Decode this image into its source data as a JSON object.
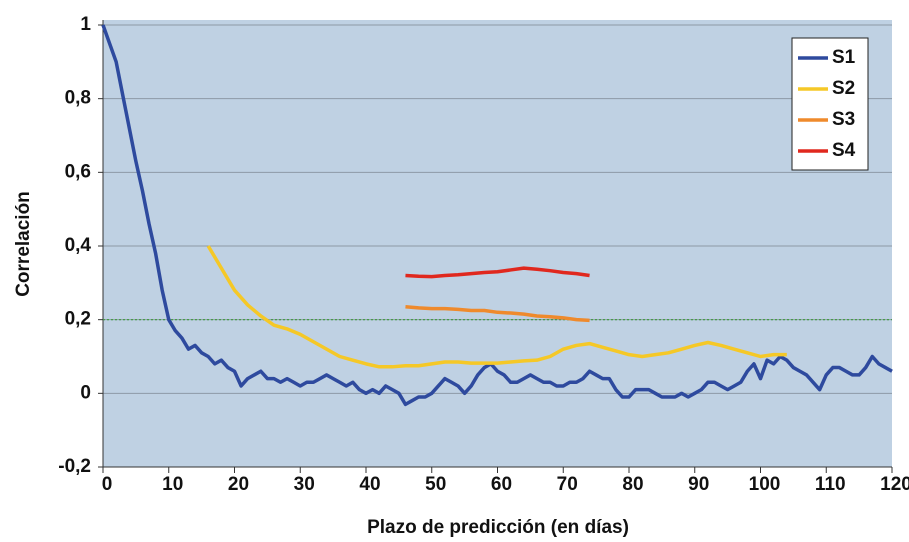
{
  "chart_data": {
    "type": "line",
    "y_label": "Correlación",
    "x_label": "Plazo de predicción (en días)",
    "xlim": [
      0,
      120
    ],
    "xticks": [
      0,
      10,
      20,
      30,
      40,
      50,
      60,
      70,
      80,
      90,
      100,
      110,
      120
    ],
    "ylim": [
      -0.2,
      1
    ],
    "yticks": [
      {
        "value": -0.2,
        "label": "-0,2"
      },
      0,
      {
        "value": 0.2,
        "label": "0,2"
      },
      {
        "value": 0.4,
        "label": "0,4"
      },
      {
        "value": 0.6,
        "label": "0,6"
      },
      {
        "value": 0.8,
        "label": "0,8"
      },
      1
    ],
    "grid": true,
    "background": "#bfd1e3",
    "reference_line": {
      "value": 0.2,
      "color": "#3a9a3a"
    },
    "legend": "upper right",
    "series": [
      {
        "name": "S1",
        "color": "#2e4a9e",
        "x": [
          0,
          1,
          2,
          3,
          4,
          5,
          6,
          7,
          8,
          9,
          10,
          11,
          12,
          13,
          14,
          15,
          16,
          17,
          18,
          19,
          20,
          21,
          22,
          23,
          24,
          25,
          26,
          27,
          28,
          29,
          30,
          31,
          32,
          33,
          34,
          35,
          36,
          37,
          38,
          39,
          40,
          41,
          42,
          43,
          44,
          45,
          46,
          47,
          48,
          49,
          50,
          51,
          52,
          53,
          54,
          55,
          56,
          57,
          58,
          59,
          60,
          61,
          62,
          63,
          64,
          65,
          66,
          67,
          68,
          69,
          70,
          71,
          72,
          73,
          74,
          75,
          76,
          77,
          78,
          79,
          80,
          81,
          82,
          83,
          84,
          85,
          86,
          87,
          88,
          89,
          90,
          91,
          92,
          93,
          94,
          95,
          96,
          97,
          98,
          99,
          100,
          101,
          102,
          103,
          104,
          105,
          106,
          107,
          108,
          109,
          110,
          111,
          112,
          113,
          114,
          115,
          116,
          117,
          118,
          119,
          120
        ],
        "values": [
          1.0,
          0.95,
          0.9,
          0.81,
          0.72,
          0.63,
          0.55,
          0.46,
          0.38,
          0.28,
          0.2,
          0.17,
          0.15,
          0.12,
          0.13,
          0.11,
          0.1,
          0.08,
          0.09,
          0.07,
          0.06,
          0.02,
          0.04,
          0.05,
          0.06,
          0.04,
          0.04,
          0.03,
          0.04,
          0.03,
          0.02,
          0.03,
          0.03,
          0.04,
          0.05,
          0.04,
          0.03,
          0.02,
          0.03,
          0.01,
          0.0,
          0.01,
          0.0,
          0.02,
          0.01,
          0.0,
          -0.03,
          -0.02,
          -0.01,
          -0.01,
          0.0,
          0.02,
          0.04,
          0.03,
          0.02,
          0.0,
          0.02,
          0.05,
          0.07,
          0.08,
          0.06,
          0.05,
          0.03,
          0.03,
          0.04,
          0.05,
          0.04,
          0.03,
          0.03,
          0.02,
          0.02,
          0.03,
          0.03,
          0.04,
          0.06,
          0.05,
          0.04,
          0.04,
          0.01,
          -0.01,
          -0.01,
          0.01,
          0.01,
          0.01,
          0.0,
          -0.01,
          -0.01,
          -0.01,
          0.0,
          -0.01,
          0.0,
          0.01,
          0.03,
          0.03,
          0.02,
          0.01,
          0.02,
          0.03,
          0.06,
          0.08,
          0.04,
          0.09,
          0.08,
          0.1,
          0.09,
          0.07,
          0.06,
          0.05,
          0.03,
          0.01,
          0.05,
          0.07,
          0.07,
          0.06,
          0.05,
          0.05,
          0.07,
          0.1,
          0.08,
          0.07,
          0.06
        ]
      },
      {
        "name": "S2",
        "color": "#f5c827",
        "x": [
          16,
          18,
          20,
          22,
          24,
          26,
          28,
          30,
          32,
          34,
          36,
          38,
          40,
          42,
          44,
          46,
          48,
          50,
          52,
          54,
          56,
          58,
          60,
          62,
          64,
          66,
          68,
          70,
          72,
          74,
          76,
          78,
          80,
          82,
          84,
          86,
          88,
          90,
          92,
          94,
          96,
          98,
          100,
          102,
          104
        ],
        "values": [
          0.4,
          0.34,
          0.28,
          0.24,
          0.21,
          0.185,
          0.175,
          0.16,
          0.14,
          0.12,
          0.1,
          0.09,
          0.08,
          0.072,
          0.072,
          0.075,
          0.075,
          0.08,
          0.085,
          0.085,
          0.082,
          0.082,
          0.082,
          0.085,
          0.088,
          0.09,
          0.1,
          0.12,
          0.13,
          0.135,
          0.125,
          0.115,
          0.105,
          0.1,
          0.105,
          0.11,
          0.12,
          0.13,
          0.138,
          0.13,
          0.12,
          0.11,
          0.1,
          0.105,
          0.105
        ]
      },
      {
        "name": "S3",
        "color": "#ef8a2c",
        "x": [
          46,
          48,
          50,
          52,
          54,
          56,
          58,
          60,
          62,
          64,
          66,
          68,
          70,
          72,
          74
        ],
        "values": [
          0.235,
          0.232,
          0.23,
          0.23,
          0.228,
          0.225,
          0.225,
          0.22,
          0.218,
          0.215,
          0.21,
          0.208,
          0.205,
          0.2,
          0.198
        ]
      },
      {
        "name": "S4",
        "color": "#e0281e",
        "x": [
          46,
          48,
          50,
          52,
          54,
          56,
          58,
          60,
          62,
          64,
          66,
          68,
          70,
          72,
          74
        ],
        "values": [
          0.32,
          0.318,
          0.317,
          0.32,
          0.322,
          0.325,
          0.328,
          0.33,
          0.335,
          0.34,
          0.337,
          0.333,
          0.328,
          0.325,
          0.32
        ]
      }
    ]
  }
}
